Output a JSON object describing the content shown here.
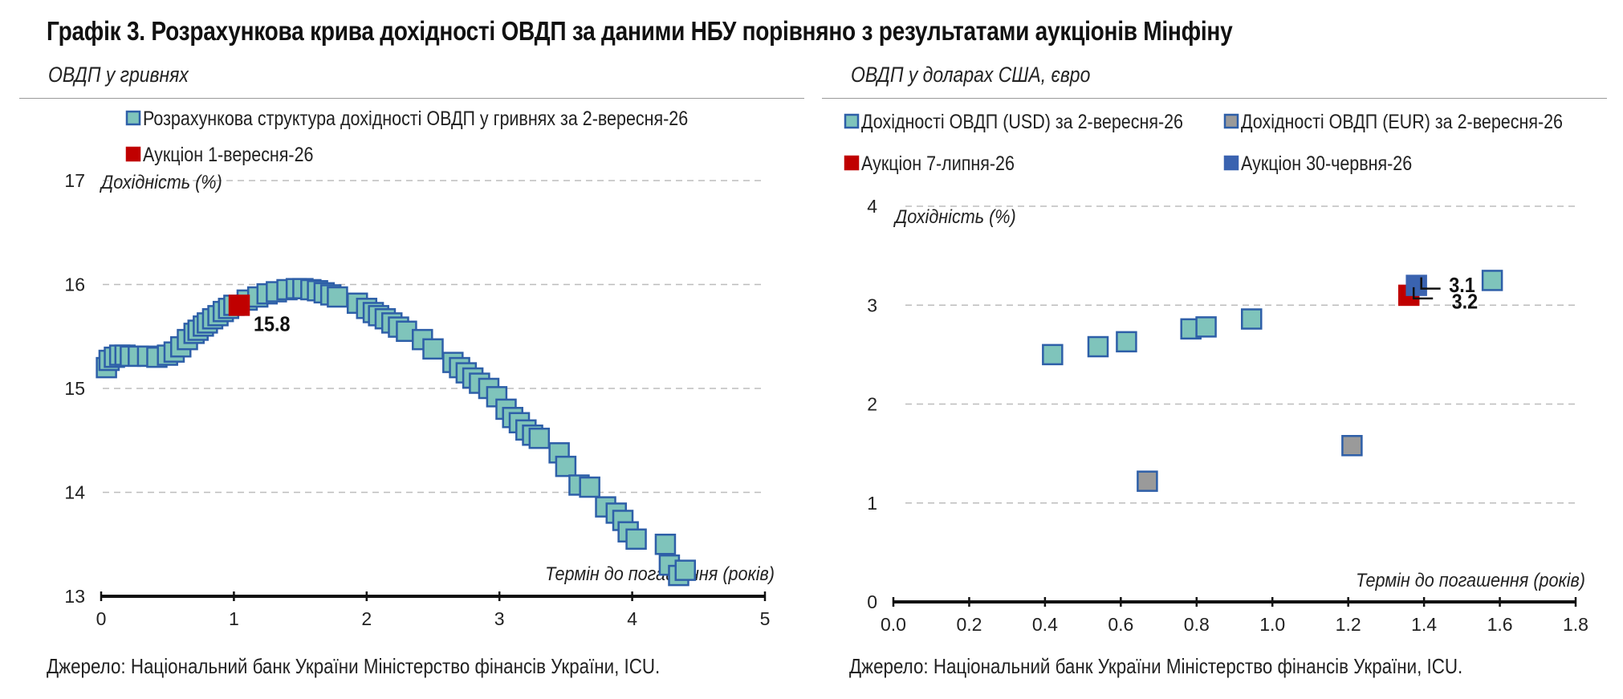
{
  "title": "Графік 3. Розрахункова крива дохідності ОВДП за даними НБУ порівняно з результатами аукціонів Мінфіну",
  "colors": {
    "teal_fill": "#7fc4bb",
    "teal_stroke": "#2e5fa8",
    "grey_fill": "#9a9a9a",
    "red": "#c00000",
    "blue": "#3a63b0",
    "grid": "#bdbdbd"
  },
  "left_panel": {
    "subtitle": "ОВДП у гривнях",
    "source": "Джерело: Національний банк України Міністерство фінансів України, ICU."
  },
  "right_panel": {
    "subtitle": "ОВДП у доларах США, євро",
    "source": "Джерело: Національний банк України Міністерство фінансів України, ICU."
  },
  "chart_data": [
    {
      "type": "scatter",
      "xlabel": "Термін до погашення (років)",
      "ylabel": "Дохідність (%)",
      "xlim": [
        0,
        5
      ],
      "ylim": [
        13,
        17
      ],
      "x_ticks": [
        "0",
        "1",
        "2",
        "3",
        "4",
        "5"
      ],
      "y_ticks": [
        "13",
        "14",
        "15",
        "16",
        "17"
      ],
      "grid": "horizontal dashed",
      "legend": "top",
      "series": [
        {
          "name": "Розрахункова структура дохідності ОВДП у гривнях за 2-вересня-26",
          "color": "#7fc4bb",
          "x": [
            0.04,
            0.06,
            0.1,
            0.14,
            0.18,
            0.22,
            0.28,
            0.35,
            0.42,
            0.5,
            0.55,
            0.6,
            0.65,
            0.7,
            0.73,
            0.77,
            0.8,
            0.84,
            0.88,
            0.92,
            0.96,
            1.0,
            1.1,
            1.18,
            1.25,
            1.32,
            1.4,
            1.47,
            1.52,
            1.58,
            1.63,
            1.68,
            1.73,
            1.78,
            1.93,
            2.0,
            2.05,
            2.09,
            2.14,
            2.19,
            2.24,
            2.3,
            2.42,
            2.5,
            2.65,
            2.7,
            2.75,
            2.8,
            2.85,
            2.92,
            2.98,
            3.05,
            3.1,
            3.15,
            3.2,
            3.25,
            3.3,
            3.45,
            3.5,
            3.6,
            3.68,
            3.8,
            3.88,
            3.93,
            3.97,
            4.03,
            4.25,
            4.28,
            4.35,
            4.4
          ],
          "values": [
            15.2,
            15.27,
            15.3,
            15.32,
            15.32,
            15.31,
            15.31,
            15.31,
            15.3,
            15.32,
            15.35,
            15.4,
            15.47,
            15.53,
            15.56,
            15.6,
            15.63,
            15.67,
            15.7,
            15.74,
            15.77,
            15.8,
            15.85,
            15.88,
            15.91,
            15.93,
            15.95,
            15.96,
            15.96,
            15.95,
            15.94,
            15.92,
            15.9,
            15.88,
            15.82,
            15.77,
            15.73,
            15.7,
            15.67,
            15.63,
            15.59,
            15.55,
            15.47,
            15.38,
            15.25,
            15.2,
            15.15,
            15.1,
            15.05,
            15.0,
            14.92,
            14.8,
            14.72,
            14.67,
            14.6,
            14.55,
            14.52,
            14.38,
            14.25,
            14.07,
            14.05,
            13.86,
            13.8,
            13.73,
            13.62,
            13.55,
            13.5,
            13.3,
            13.2,
            13.25
          ]
        },
        {
          "name": "Аукціон 1-вересня-26",
          "color": "#c00000",
          "x": [
            1.04
          ],
          "values": [
            15.8
          ],
          "labels": [
            "15.8"
          ]
        }
      ]
    },
    {
      "type": "scatter",
      "xlabel": "Термін до погашення (років)",
      "ylabel": "Дохідність (%)",
      "xlim": [
        0,
        1.8
      ],
      "ylim": [
        0,
        4
      ],
      "x_ticks": [
        "0.0",
        "0.2",
        "0.4",
        "0.6",
        "0.8",
        "1.0",
        "1.2",
        "1.4",
        "1.6",
        "1.8"
      ],
      "y_ticks": [
        "0",
        "1",
        "2",
        "3",
        "4"
      ],
      "grid": "horizontal dashed",
      "legend": "top",
      "series": [
        {
          "name": "Дохідності ОВДП (USD) за 2-вересня-26",
          "color": "#7fc4bb",
          "x": [
            0.42,
            0.54,
            0.615,
            0.785,
            0.825,
            0.945,
            1.58
          ],
          "values": [
            2.5,
            2.58,
            2.63,
            2.76,
            2.78,
            2.86,
            3.25
          ]
        },
        {
          "name": "Дохідності ОВДП (EUR) за 2-вересня-26",
          "color": "#9a9a9a",
          "x": [
            0.67,
            1.21
          ],
          "values": [
            1.22,
            1.58
          ]
        },
        {
          "name": "Аукціон 7-липня-26",
          "color": "#c00000",
          "x": [
            1.36
          ],
          "values": [
            3.1
          ],
          "labels": [
            "3.1"
          ]
        },
        {
          "name": "Аукціон 30-червня-26",
          "color": "#3a63b0",
          "x": [
            1.38
          ],
          "values": [
            3.2
          ],
          "labels": [
            "3.2"
          ]
        }
      ]
    }
  ]
}
